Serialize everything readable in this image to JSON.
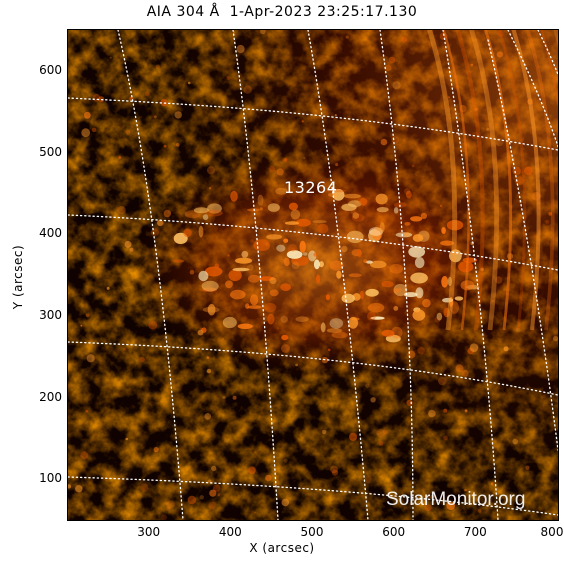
{
  "title": "AIA 304 Å  1-Apr-2023 23:25:17.130",
  "active_region": "13264",
  "watermark": "SolarMonitor.org",
  "colors": {
    "plot_background": "#000000",
    "emission_dim": "#5a0c00",
    "emission_mid": "#c53a00",
    "emission_bright": "#ff9a2a",
    "emission_peak": "#fff0c0",
    "grid_line": "#ffffff"
  },
  "chart_data": {
    "type": "image",
    "xlabel": "X (arcsec)",
    "ylabel": "Y (arcsec)",
    "xlim": [
      200,
      800
    ],
    "ylim": [
      50,
      650
    ],
    "x_ticks": [
      "300",
      "400",
      "500",
      "600",
      "700",
      "800"
    ],
    "y_ticks": [
      "100",
      "200",
      "300",
      "400",
      "500",
      "600"
    ],
    "grid": "heliographic"
  }
}
